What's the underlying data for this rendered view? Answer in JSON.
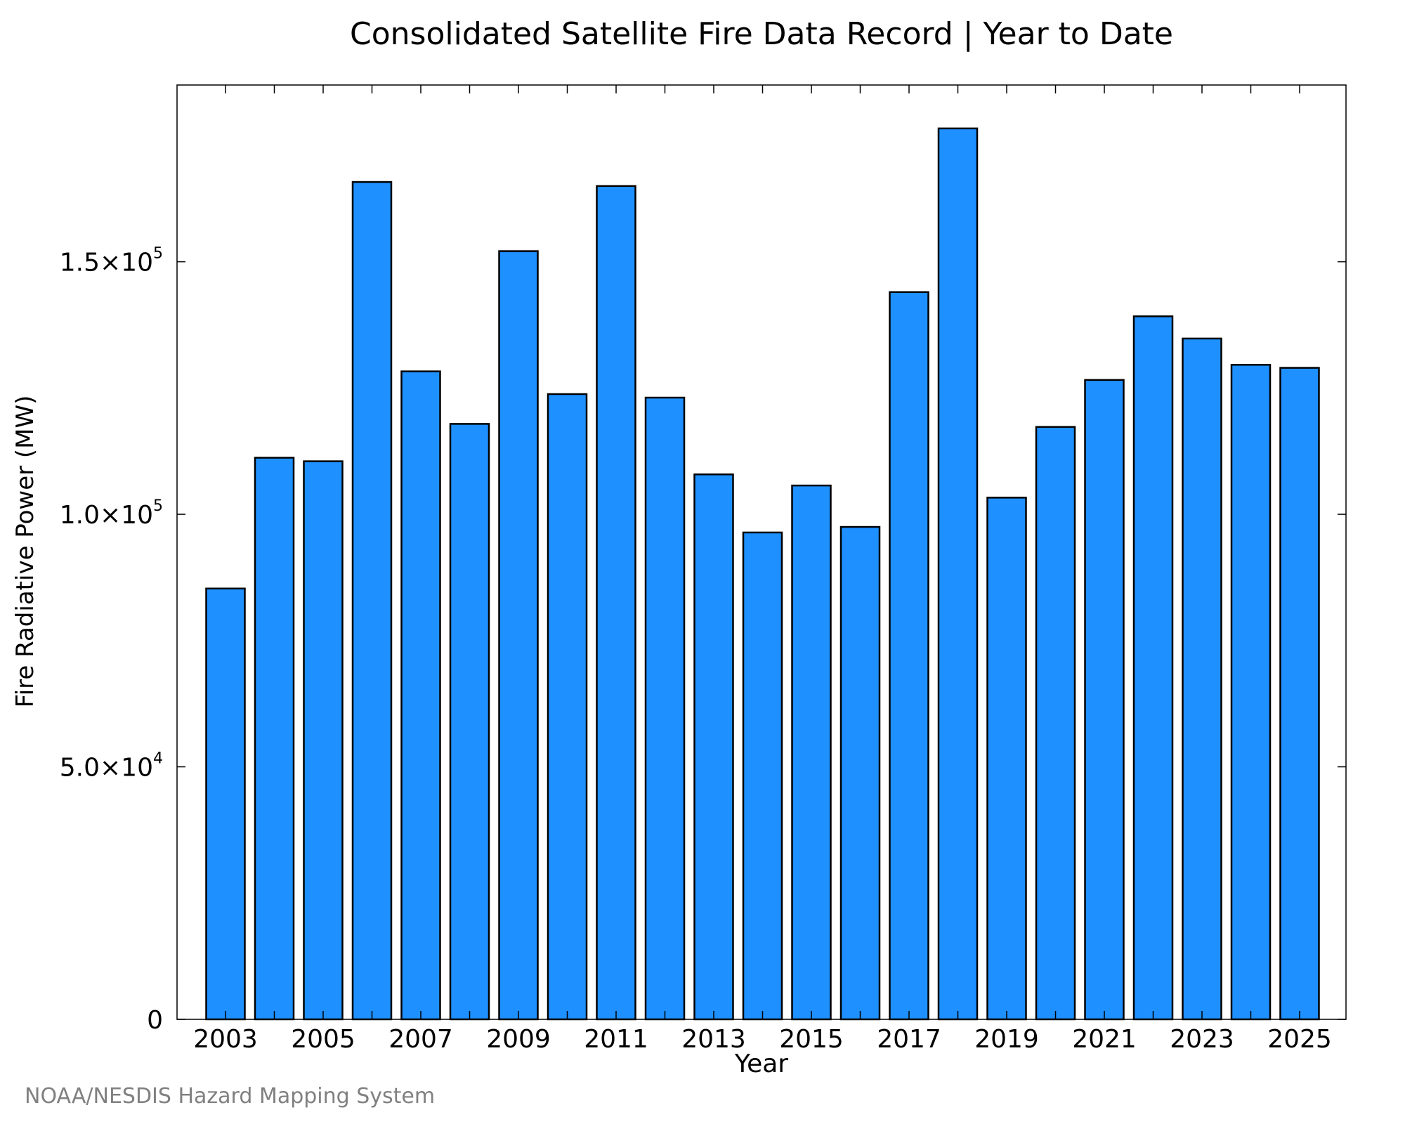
{
  "chart_data": {
    "type": "bar",
    "title": "Consolidated Satellite Fire Data Record | Year to Date",
    "xlabel": "Year",
    "ylabel": "Fire Radiative Power (MW)",
    "credit": "NOAA/NESDIS Hazard Mapping System",
    "bar_color": "#1E90FF",
    "ylim": [
      0,
      185000
    ],
    "grid": false,
    "y_ticks": [
      {
        "value": 0,
        "mantissa": "0",
        "exponent": ""
      },
      {
        "value": 50000,
        "mantissa": "5.0×10",
        "exponent": "4"
      },
      {
        "value": 100000,
        "mantissa": "1.0×10",
        "exponent": "5"
      },
      {
        "value": 150000,
        "mantissa": "1.5×10",
        "exponent": "5"
      }
    ],
    "x_tick_labels": [
      "2003",
      "2005",
      "2007",
      "2009",
      "2011",
      "2013",
      "2015",
      "2017",
      "2019",
      "2021",
      "2023",
      "2025"
    ],
    "categories": [
      2003,
      2004,
      2005,
      2006,
      2007,
      2008,
      2009,
      2010,
      2011,
      2012,
      2013,
      2014,
      2015,
      2016,
      2017,
      2018,
      2019,
      2020,
      2021,
      2022,
      2023,
      2024,
      2025
    ],
    "values": [
      85300,
      111200,
      110500,
      165800,
      128300,
      117900,
      152100,
      123800,
      165000,
      123100,
      107900,
      96400,
      105700,
      97500,
      144000,
      176400,
      103300,
      117300,
      126600,
      139200,
      134800,
      129600,
      129000
    ]
  }
}
